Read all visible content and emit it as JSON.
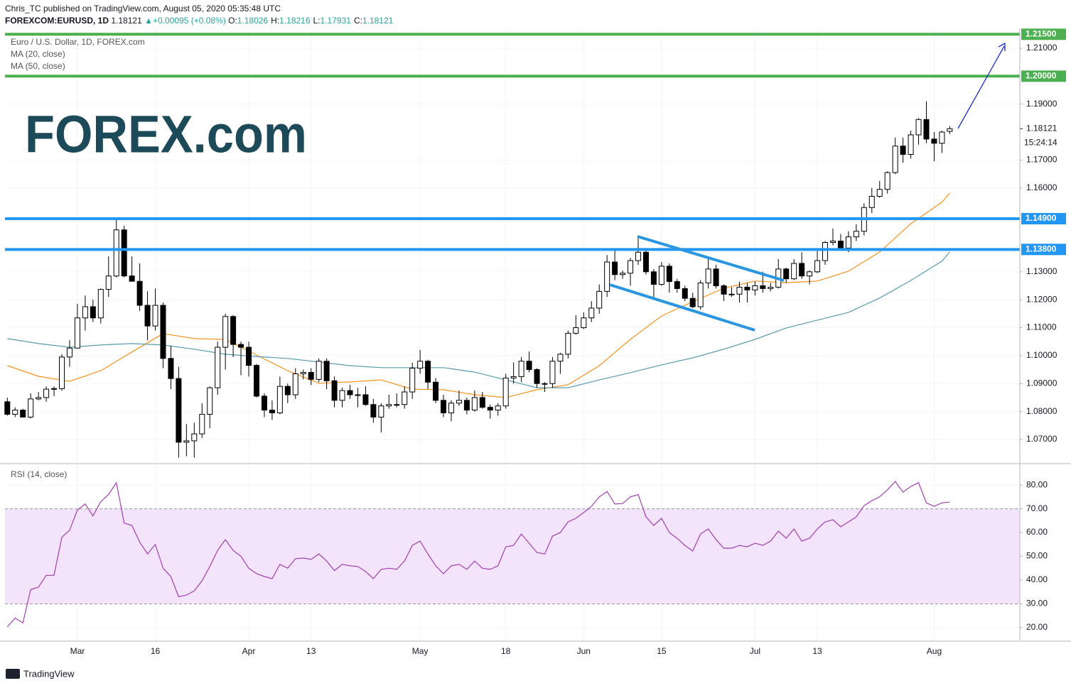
{
  "header": {
    "published": "Chris_TC published on TradingView.com, August 05, 2020 05:35:48 UTC",
    "symbol": "FOREXCOM:EURUSD, 1D",
    "last": "1.18121",
    "change": "+0.00095 (+0.08%)",
    "ohlc": [
      {
        "label": "O:",
        "value": "1.18026"
      },
      {
        "label": "H:",
        "value": "1.18216"
      },
      {
        "label": "L:",
        "value": "1.17931"
      },
      {
        "label": "C:",
        "value": "1.18121"
      }
    ]
  },
  "logo": "FOREX.com",
  "footer": "TradingView",
  "chart_data": [
    {
      "type": "candlestick",
      "title": "Euro / U.S. Dollar, 1D, FOREX.com",
      "up_color": "#ffffff",
      "down_color": "#000000",
      "open": [
        1.0835,
        1.079,
        1.0805,
        1.078,
        1.0845,
        1.085,
        1.088,
        1.0882,
        1.0995,
        1.1027,
        1.1135,
        1.1175,
        1.1135,
        1.1237,
        1.1285,
        1.145,
        1.1285,
        1.1266,
        1.118,
        1.1106,
        1.118,
        1.099,
        1.0918,
        1.069,
        1.0695,
        1.072,
        1.079,
        1.0885,
        1.103,
        1.114,
        1.104,
        1.103,
        1.0965,
        1.0855,
        1.0805,
        1.0795,
        1.089,
        1.086,
        1.0935,
        1.094,
        1.0915,
        1.098,
        1.091,
        1.084,
        1.0875,
        1.086,
        1.086,
        1.0825,
        1.078,
        1.082,
        1.0825,
        1.0825,
        1.087,
        1.0955,
        1.098,
        1.0905,
        1.084,
        1.0795,
        1.083,
        1.084,
        1.0805,
        1.085,
        1.0815,
        1.0805,
        1.082,
        1.092,
        1.0925,
        1.098,
        1.095,
        1.09,
        1.09,
        1.098,
        1.1005,
        1.108,
        1.11,
        1.1135,
        1.117,
        1.123,
        1.1335,
        1.129,
        1.1295,
        1.134,
        1.137,
        1.13,
        1.1255,
        1.132,
        1.1265,
        1.124,
        1.1205,
        1.1175,
        1.126,
        1.131,
        1.125,
        1.122,
        1.122,
        1.1245,
        1.1235,
        1.125,
        1.124,
        1.1245,
        1.131,
        1.1275,
        1.133,
        1.1285,
        1.13,
        1.134,
        1.1405,
        1.141,
        1.1385,
        1.1425,
        1.1445,
        1.153,
        1.157,
        1.1595,
        1.1655,
        1.175,
        1.172,
        1.179,
        1.1845,
        1.1775,
        1.176,
        1.18026
      ],
      "high": [
        1.085,
        1.0815,
        1.081,
        1.0865,
        1.087,
        1.089,
        1.089,
        1.1005,
        1.1055,
        1.1185,
        1.1215,
        1.12,
        1.124,
        1.1355,
        1.1495,
        1.1465,
        1.1355,
        1.133,
        1.123,
        1.124,
        1.119,
        1.1035,
        1.096,
        1.0755,
        1.076,
        1.083,
        1.089,
        1.105,
        1.115,
        1.1145,
        1.105,
        1.105,
        1.097,
        1.0865,
        1.084,
        1.0925,
        1.09,
        1.0955,
        1.095,
        1.0955,
        1.099,
        1.099,
        1.0925,
        1.0885,
        1.0895,
        1.0885,
        1.089,
        1.0845,
        1.083,
        1.086,
        1.0865,
        1.089,
        1.0975,
        1.102,
        1.0985,
        1.092,
        1.086,
        1.084,
        1.0875,
        1.085,
        1.0875,
        1.087,
        1.0825,
        1.083,
        1.0935,
        1.0975,
        1.0995,
        1.1015,
        1.0955,
        1.0905,
        1.0995,
        1.101,
        1.109,
        1.1145,
        1.1155,
        1.1195,
        1.1255,
        1.136,
        1.1385,
        1.1305,
        1.135,
        1.142,
        1.1385,
        1.131,
        1.1335,
        1.133,
        1.1275,
        1.125,
        1.1225,
        1.127,
        1.135,
        1.1325,
        1.1255,
        1.1245,
        1.1265,
        1.126,
        1.1265,
        1.13,
        1.126,
        1.1345,
        1.1315,
        1.1345,
        1.137,
        1.1305,
        1.1375,
        1.141,
        1.1455,
        1.1435,
        1.1445,
        1.147,
        1.1545,
        1.16,
        1.1625,
        1.166,
        1.178,
        1.178,
        1.1805,
        1.185,
        1.191,
        1.18,
        1.1805,
        1.18216
      ],
      "low": [
        1.0785,
        1.078,
        1.0778,
        1.0775,
        1.084,
        1.0835,
        1.0855,
        1.0875,
        1.096,
        1.1025,
        1.109,
        1.112,
        1.1115,
        1.121,
        1.128,
        1.128,
        1.1265,
        1.116,
        1.1055,
        1.109,
        1.0955,
        1.088,
        1.0635,
        1.064,
        1.0635,
        1.0705,
        1.074,
        1.086,
        1.095,
        1.0995,
        1.093,
        1.0925,
        1.085,
        1.078,
        1.077,
        1.079,
        1.083,
        1.0845,
        1.0915,
        1.0895,
        1.0905,
        1.088,
        1.0815,
        1.0815,
        1.0845,
        1.0815,
        1.082,
        1.076,
        1.0725,
        1.081,
        1.0815,
        1.081,
        1.0845,
        1.0935,
        1.088,
        1.083,
        1.078,
        1.0765,
        1.082,
        1.079,
        1.08,
        1.081,
        1.0775,
        1.0785,
        1.081,
        1.09,
        1.0905,
        1.094,
        1.0885,
        1.087,
        1.0885,
        1.0935,
        1.099,
        1.1075,
        1.1095,
        1.112,
        1.115,
        1.121,
        1.127,
        1.1275,
        1.125,
        1.1325,
        1.129,
        1.121,
        1.125,
        1.1225,
        1.1225,
        1.1195,
        1.117,
        1.1165,
        1.124,
        1.124,
        1.1195,
        1.121,
        1.119,
        1.119,
        1.1215,
        1.1225,
        1.123,
        1.124,
        1.126,
        1.127,
        1.1275,
        1.1255,
        1.1295,
        1.1325,
        1.1395,
        1.1375,
        1.137,
        1.141,
        1.143,
        1.151,
        1.1565,
        1.158,
        1.165,
        1.169,
        1.1705,
        1.1755,
        1.176,
        1.1695,
        1.1725,
        1.17931
      ],
      "close": [
        1.079,
        1.0805,
        1.078,
        1.0845,
        1.085,
        1.088,
        1.0882,
        1.0995,
        1.1027,
        1.1135,
        1.1175,
        1.1135,
        1.1237,
        1.1285,
        1.145,
        1.1285,
        1.1266,
        1.118,
        1.1106,
        1.118,
        1.099,
        1.0918,
        1.069,
        1.0695,
        1.072,
        1.079,
        1.0885,
        1.103,
        1.114,
        1.104,
        1.103,
        1.0965,
        1.0855,
        1.0805,
        1.0795,
        1.089,
        1.086,
        1.0935,
        1.094,
        1.0915,
        1.098,
        1.091,
        1.084,
        1.0875,
        1.086,
        1.086,
        1.0825,
        1.078,
        1.082,
        1.0825,
        1.0825,
        1.087,
        1.0955,
        1.098,
        1.0905,
        1.084,
        1.0795,
        1.083,
        1.084,
        1.0805,
        1.085,
        1.0815,
        1.0805,
        1.082,
        1.092,
        1.0925,
        1.098,
        1.095,
        1.09,
        1.09,
        1.098,
        1.1005,
        1.108,
        1.11,
        1.1135,
        1.117,
        1.123,
        1.1335,
        1.129,
        1.1295,
        1.134,
        1.137,
        1.13,
        1.1255,
        1.132,
        1.1265,
        1.124,
        1.1205,
        1.1175,
        1.126,
        1.131,
        1.125,
        1.122,
        1.122,
        1.1245,
        1.1235,
        1.125,
        1.124,
        1.1245,
        1.131,
        1.1275,
        1.133,
        1.1285,
        1.13,
        1.134,
        1.1405,
        1.141,
        1.1385,
        1.1425,
        1.1445,
        1.153,
        1.157,
        1.1595,
        1.1655,
        1.175,
        1.172,
        1.179,
        1.1845,
        1.1775,
        1.176,
        1.18,
        1.18121
      ],
      "overlays": [
        {
          "name": "MA (20, close)",
          "color": "#f7931e",
          "x": [
            0,
            4,
            8,
            12,
            16,
            20,
            24,
            28,
            32,
            36,
            40,
            44,
            48,
            52,
            56,
            60,
            64,
            68,
            72,
            76,
            80,
            84,
            88,
            92,
            96,
            100,
            104,
            108,
            112,
            116,
            120,
            121
          ],
          "values": [
            1.0964,
            1.0926,
            1.0908,
            1.0946,
            1.1013,
            1.1079,
            1.1061,
            1.1058,
            1.1002,
            1.0946,
            1.0901,
            1.0906,
            1.0913,
            1.088,
            1.0878,
            1.086,
            1.085,
            1.0878,
            1.0896,
            1.0964,
            1.1058,
            1.1142,
            1.1193,
            1.1241,
            1.1267,
            1.1261,
            1.1267,
            1.1302,
            1.1371,
            1.1472,
            1.1549,
            1.1582
          ]
        },
        {
          "name": "MA (50, close)",
          "color": "#5a9bb0",
          "x": [
            0,
            4,
            8,
            12,
            16,
            20,
            24,
            28,
            32,
            36,
            40,
            44,
            48,
            52,
            56,
            60,
            64,
            68,
            72,
            76,
            80,
            84,
            88,
            92,
            96,
            100,
            104,
            108,
            112,
            116,
            120,
            121
          ],
          "values": [
            1.1061,
            1.1043,
            1.103,
            1.1038,
            1.1043,
            1.1038,
            1.1023,
            1.1005,
            1.0997,
            1.099,
            1.0977,
            1.0964,
            1.0957,
            1.0957,
            1.0957,
            1.0941,
            1.0913,
            1.0885,
            1.0885,
            1.0913,
            1.0939,
            1.0967,
            1.0992,
            1.1023,
            1.1058,
            1.1099,
            1.1127,
            1.1155,
            1.1206,
            1.1269,
            1.1338,
            1.1371
          ]
        }
      ],
      "levels": [
        {
          "value": 1.215,
          "label": "1.21500",
          "color": "#4caf50"
        },
        {
          "value": 1.2,
          "label": "1.20000",
          "color": "#4caf50"
        },
        {
          "value": 1.149,
          "label": "1.14900",
          "color": "#2196f3"
        },
        {
          "value": 1.138,
          "label": "1.13800",
          "color": "#2196f3"
        }
      ],
      "last_price": {
        "value": 1.18121,
        "label": "1.18121"
      },
      "countdown": "15:24:14",
      "xlim": [
        -0.3,
        130
      ],
      "xticks": [
        {
          "value": 9,
          "label": "Mar"
        },
        {
          "value": 19,
          "label": "16"
        },
        {
          "value": 31,
          "label": "Apr"
        },
        {
          "value": 39,
          "label": "13"
        },
        {
          "value": 53,
          "label": "May"
        },
        {
          "value": 64,
          "label": "18"
        },
        {
          "value": 74,
          "label": "Jun"
        },
        {
          "value": 84,
          "label": "15"
        },
        {
          "value": 96,
          "label": "Jul"
        },
        {
          "value": 104,
          "label": "13"
        },
        {
          "value": 119,
          "label": "Aug"
        }
      ],
      "ylim": [
        1.0616,
        1.2171
      ],
      "yticks": [
        {
          "value": 1.21,
          "label": "1.21000"
        },
        {
          "value": 1.19,
          "label": "1.19000"
        },
        {
          "value": 1.17,
          "label": "1.17000"
        },
        {
          "value": 1.16,
          "label": "1.16000"
        },
        {
          "value": 1.13,
          "label": "1.13000"
        },
        {
          "value": 1.12,
          "label": "1.12000"
        },
        {
          "value": 1.11,
          "label": "1.11000"
        },
        {
          "value": 1.1,
          "label": "1.10000"
        },
        {
          "value": 1.09,
          "label": "1.09000"
        },
        {
          "value": 1.08,
          "label": "1.08000"
        },
        {
          "value": 1.07,
          "label": "1.07000"
        }
      ],
      "grid": true
    },
    {
      "type": "line",
      "title": "RSI (14, close)",
      "color": "#a040b0",
      "band": [
        30,
        70
      ],
      "band_color": "#f3e3fb",
      "values": [
        20.3,
        24,
        22,
        36,
        37,
        42,
        42,
        58,
        61,
        69.5,
        72,
        67,
        73,
        76,
        81,
        64,
        63,
        56,
        51,
        55,
        45,
        41.5,
        33,
        33.7,
        35.5,
        39.7,
        45.7,
        52.5,
        57,
        52.5,
        50,
        45,
        42.7,
        41.5,
        40.6,
        46.6,
        45,
        49,
        49.3,
        48.7,
        51,
        48,
        44,
        46.6,
        46,
        45.7,
        43.6,
        40.6,
        44.5,
        45,
        44.5,
        48,
        54.6,
        56.4,
        51,
        46,
        42.7,
        46,
        46.6,
        44.5,
        48,
        45,
        44.5,
        46,
        54,
        54.6,
        59.4,
        55.5,
        51.6,
        51,
        58.5,
        60,
        64.5,
        66,
        68.4,
        71,
        75,
        77.3,
        72,
        72.2,
        75,
        76,
        66.6,
        63,
        66,
        60,
        57.6,
        54.6,
        52.2,
        59.4,
        61.5,
        57,
        53.4,
        53.4,
        54.6,
        54,
        55.5,
        54.6,
        56.4,
        60.6,
        57.6,
        61.5,
        56.4,
        57.6,
        61.5,
        64.5,
        65.4,
        62.4,
        64.5,
        66.6,
        71.3,
        73.4,
        75,
        78,
        81.5,
        77,
        79.4,
        81,
        72.5,
        71,
        72.5,
        72.8
      ],
      "ylim": [
        14.6,
        88.4
      ],
      "yticks": [
        {
          "value": 80,
          "label": "80.00"
        },
        {
          "value": 70,
          "label": "70.00"
        },
        {
          "value": 60,
          "label": "60.00"
        },
        {
          "value": 50,
          "label": "50.00"
        },
        {
          "value": 40,
          "label": "40.00"
        },
        {
          "value": 30,
          "label": "30.00"
        },
        {
          "value": 20,
          "label": "20.00"
        }
      ],
      "grid": true
    }
  ]
}
